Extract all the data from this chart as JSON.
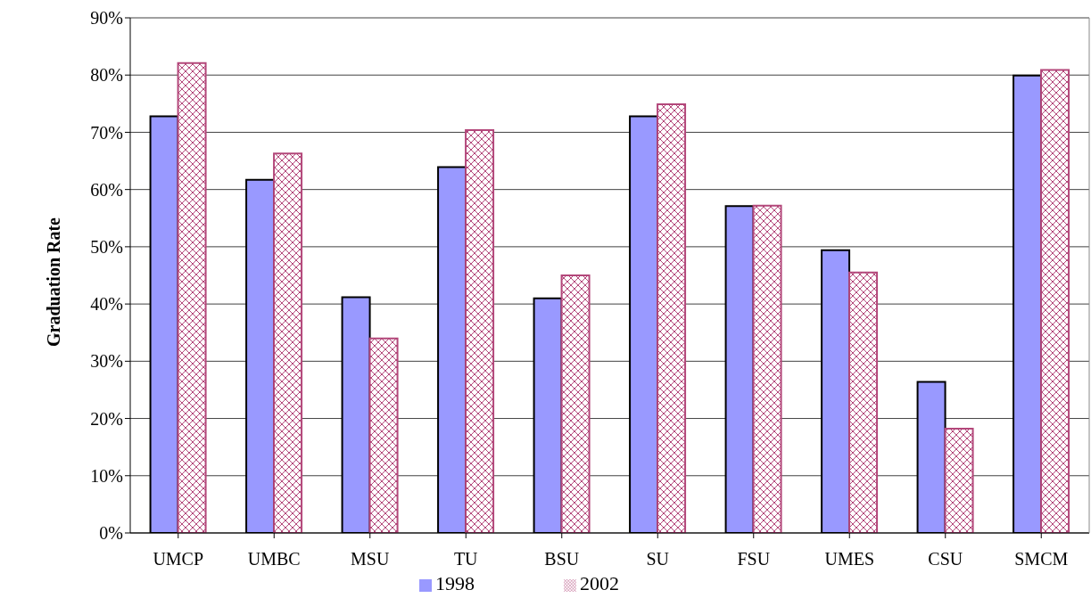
{
  "chart_data": {
    "type": "bar",
    "ylabel": "Graduation Rate",
    "categories": [
      "UMCP",
      "UMBC",
      "MSU",
      "TU",
      "BSU",
      "SU",
      "FSU",
      "UMES",
      "CSU",
      "SMCM"
    ],
    "series": [
      {
        "name": "1998",
        "color": "#9999ff",
        "values": [
          72.8,
          61.7,
          41.2,
          63.9,
          41.0,
          72.8,
          57.1,
          49.4,
          26.4,
          79.9
        ]
      },
      {
        "name": "2002",
        "color": "#b3477a",
        "values": [
          82.1,
          66.3,
          34.0,
          70.4,
          45.0,
          74.9,
          57.2,
          45.5,
          18.2,
          80.9
        ]
      }
    ],
    "ylim": [
      0,
      90
    ],
    "yticks": [
      {
        "value": 0,
        "label": "0%"
      },
      {
        "value": 10,
        "label": "10%"
      },
      {
        "value": 20,
        "label": "20%"
      },
      {
        "value": 30,
        "label": "30%"
      },
      {
        "value": 40,
        "label": "40%"
      },
      {
        "value": 50,
        "label": "50%"
      },
      {
        "value": 60,
        "label": "60%"
      },
      {
        "value": 70,
        "label": "70%"
      },
      {
        "value": 80,
        "label": "80%"
      },
      {
        "value": 90,
        "label": "90%"
      }
    ],
    "grid": "y",
    "legend": "bottom"
  }
}
